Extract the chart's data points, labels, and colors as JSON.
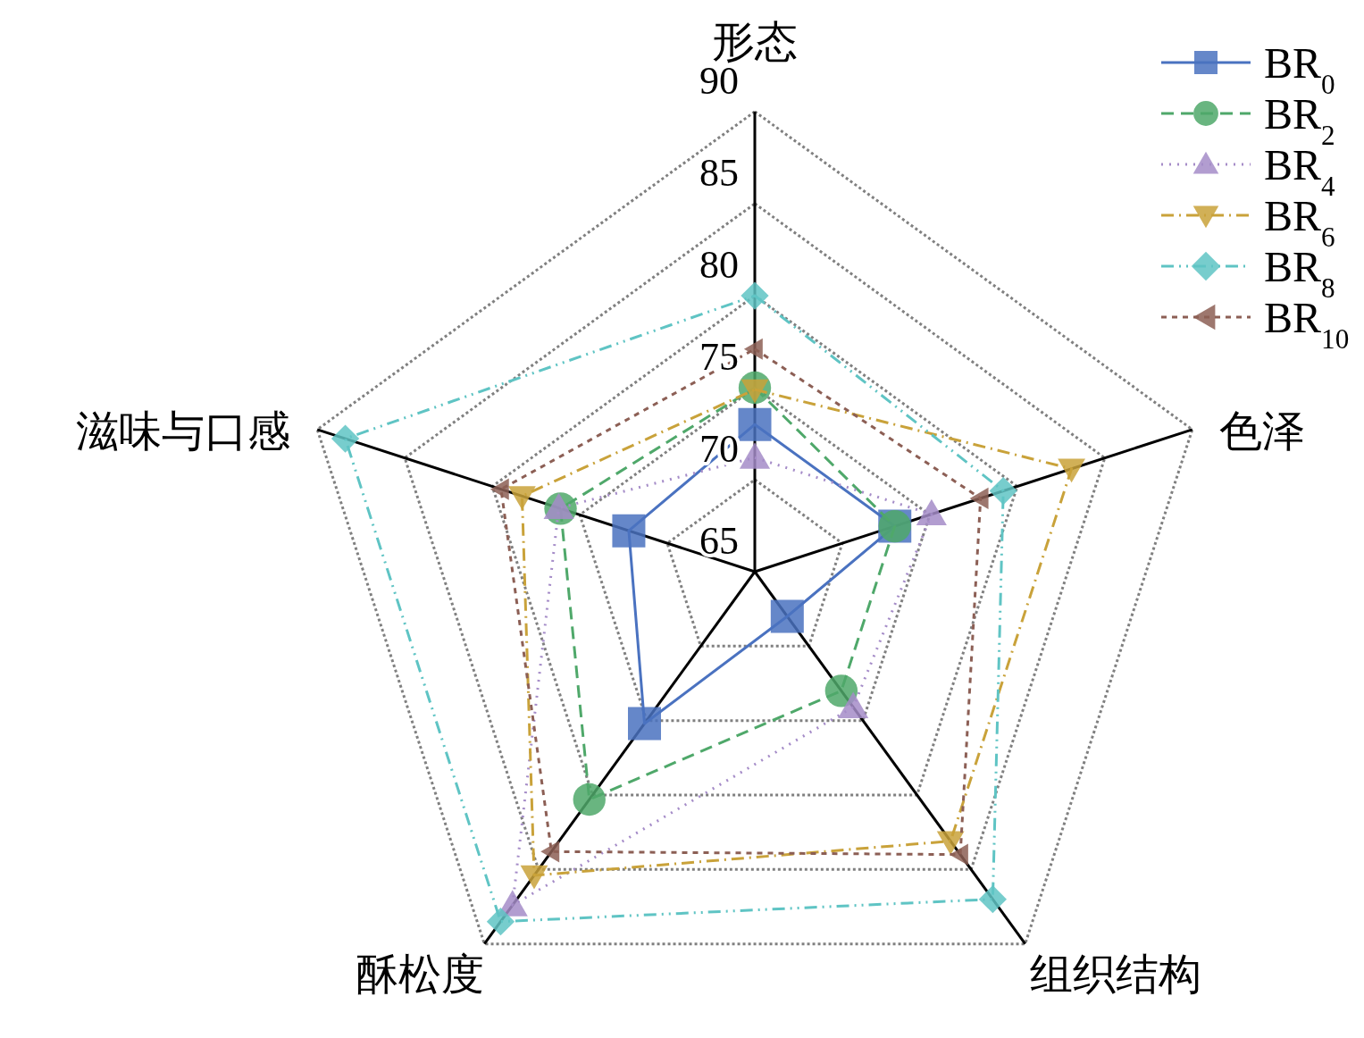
{
  "chart_data": {
    "type": "radar",
    "categories": [
      "形态",
      "色泽",
      "组织结构",
      "酥松度",
      "滋味与口感"
    ],
    "ylim": [
      65,
      90
    ],
    "yticks": [
      65,
      70,
      75,
      80,
      85,
      90
    ],
    "grid": true,
    "legend": "top right",
    "series": [
      {
        "name": "BR$_{0}$",
        "color": "#4a72c0",
        "marker": "square",
        "line_style": "solid",
        "values": [
          73.0,
          73.0,
          68.0,
          75.2,
          72.2
        ]
      },
      {
        "name": "BR$_{2}$",
        "color": "#4fa86a",
        "marker": "circle",
        "line_style": "dashed",
        "values": [
          75.0,
          73.0,
          73.0,
          80.3,
          76.1
        ]
      },
      {
        "name": "BR$_{4}$",
        "color": "#a58cc8",
        "marker": "triangle",
        "line_style": "dotted",
        "values": [
          71.2,
          75.1,
          74.1,
          87.4,
          76.2
        ]
      },
      {
        "name": "BR$_{6}$",
        "color": "#c9a23a",
        "marker": "triangle-down",
        "line_style": "dashdot",
        "values": [
          74.9,
          83.1,
          83.1,
          85.4,
          78.3
        ]
      },
      {
        "name": "BR$_{8}$",
        "color": "#5fc4c4",
        "marker": "diamond",
        "line_style": "dashdotdot",
        "values": [
          80.0,
          79.2,
          87.0,
          88.5,
          88.4
        ]
      },
      {
        "name": "BR$_{10}$",
        "color": "#8c5f55",
        "marker": "triangle-left",
        "line_style": "shortdash",
        "values": [
          77.1,
          77.9,
          84.0,
          83.8,
          79.5
        ]
      }
    ]
  }
}
